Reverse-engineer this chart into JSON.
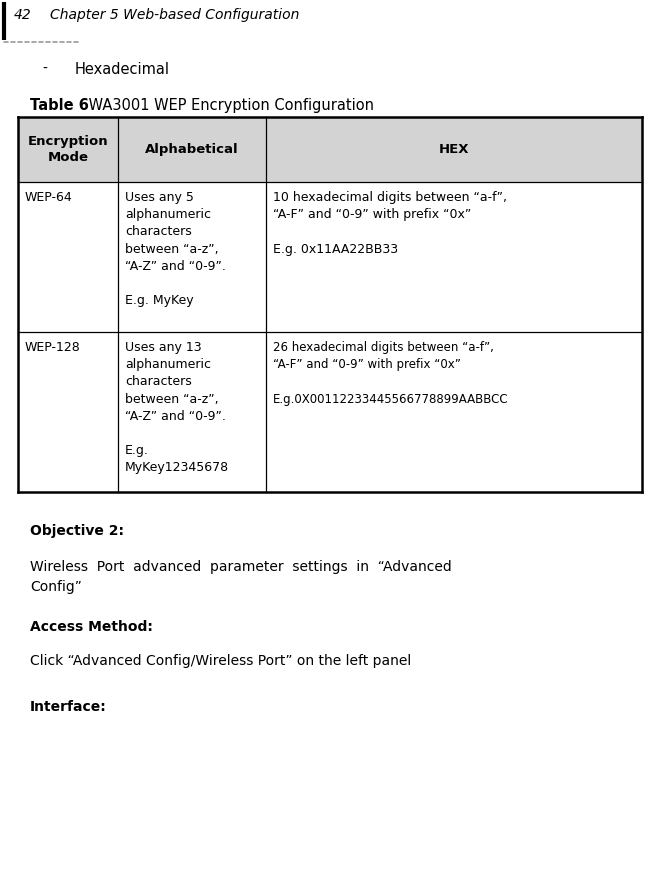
{
  "page_number": "42",
  "chapter_title": "Chapter 5 Web-based Configuration",
  "bullet_label": "-",
  "bullet_text": "Hexadecimal",
  "table_title_bold": "Table 6",
  "table_title_normal": " WA3001 WEP Encryption Configuration",
  "header_col1": "Encryption\nMode",
  "header_col2": "Alphabetical",
  "header_col3": "HEX",
  "header_bg": "#d3d3d3",
  "row1_col1": "WEP-64",
  "row1_col2": "Uses any 5\nalphanumeric\ncharacters\nbetween “a-z”,\n“A-Z” and “0-9”.\n\nE.g. MyKey",
  "row1_col3": "10 hexadecimal digits between “a-f”,\n“A-F” and “0-9” with prefix “0x”\n\nE.g. 0x11AA22BB33",
  "row2_col1": "WEP-128",
  "row2_col2": "Uses any 13\nalphanumeric\ncharacters\nbetween “a-z”,\n“A-Z” and “0-9”.\n\nE.g.\nMyKey12345678",
  "row2_col3": "26 hexadecimal digits between “a-f”,\n“A-F” and “0-9” with prefix “0x”\n\nE.g.0X00112233445566778899AABBCC",
  "objective_bold": "Objective 2:",
  "wireless_text": "Wireless  Port  advanced  parameter  settings  in  “Advanced\nConfig”",
  "access_bold": "Access Method:",
  "click_text": "Click “Advanced Config/Wireless Port” on the left panel",
  "interface_bold": "Interface:",
  "bg_color": "#ffffff",
  "text_color": "#000000",
  "header_font_size": 9.5,
  "body_font_size": 9.0
}
